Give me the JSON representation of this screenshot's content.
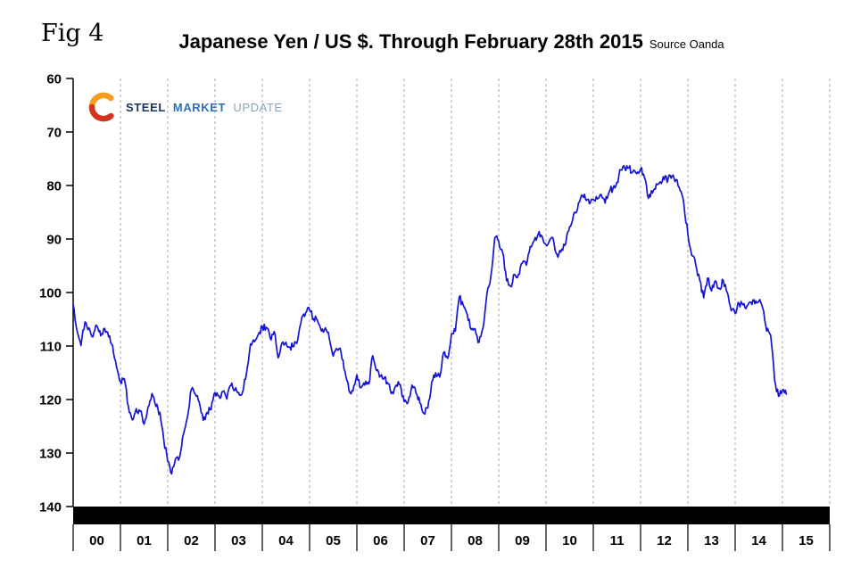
{
  "fig_label": "Fig 4",
  "title": "Japanese Yen / US $. Through February 28th 2015",
  "source": "Source Oanda",
  "logo": {
    "steel": "STEEL",
    "market": "MARKET",
    "update": "UPDATE",
    "arc_top_color": "#f59d20",
    "arc_bottom_color": "#d2351f"
  },
  "chart_data": {
    "type": "line",
    "title": "Japanese Yen / US $. Through February 28th 2015",
    "subtitle": "Source Oanda",
    "xlabel": "",
    "ylabel": "",
    "y_axis_inverted_display": true,
    "ylim_top_to_bottom": [
      60,
      140
    ],
    "y_ticks": [
      60,
      70,
      80,
      90,
      100,
      110,
      120,
      130,
      140
    ],
    "x_tick_labels": [
      "00",
      "01",
      "02",
      "03",
      "04",
      "05",
      "06",
      "07",
      "08",
      "09",
      "10",
      "11",
      "12",
      "13",
      "14",
      "15"
    ],
    "xlim_years": [
      2000,
      2016
    ],
    "grid": "vertical-dashed",
    "gridline_color": "#a8a8a8",
    "axis_color": "#000000",
    "bottom_bar_color": "#000000",
    "legend": "none",
    "series": [
      {
        "name": "Japanese Yen per US Dollar",
        "color": "#1414d2",
        "cadence": "monthly",
        "first_month": "2000-01",
        "last_month": "2015-02",
        "values": [
          102.2,
          107.2,
          109.9,
          105.5,
          106.6,
          108.3,
          106.2,
          108.1,
          106.7,
          108.3,
          109.9,
          113.9,
          116.7,
          116.1,
          121.2,
          123.8,
          121.7,
          122.2,
          124.6,
          121.4,
          118.9,
          121.3,
          122.4,
          127.6,
          131.6,
          133.9,
          131.0,
          130.8,
          126.4,
          123.3,
          118.1,
          119.0,
          120.5,
          123.9,
          122.4,
          121.9,
          118.7,
          119.3,
          118.5,
          119.9,
          117.4,
          118.3,
          118.7,
          118.6,
          115.1,
          109.6,
          109.2,
          107.8,
          106.4,
          106.5,
          108.5,
          107.3,
          112.2,
          109.4,
          109.3,
          110.2,
          110.1,
          108.8,
          104.7,
          103.8,
          103.3,
          104.9,
          105.2,
          107.2,
          106.6,
          108.6,
          111.9,
          110.6,
          111.2,
          114.8,
          118.4,
          118.4,
          115.4,
          117.8,
          117.3,
          117.1,
          111.8,
          114.6,
          115.6,
          115.9,
          117.1,
          118.6,
          117.3,
          117.2,
          120.4,
          120.5,
          117.3,
          118.8,
          120.7,
          122.6,
          121.6,
          116.7,
          115.0,
          115.8,
          111.2,
          112.3,
          107.7,
          107.2,
          100.8,
          102.4,
          104.1,
          106.9,
          106.8,
          109.3,
          106.7,
          100.2,
          96.9,
          89.8,
          90.4,
          92.5,
          97.8,
          98.9,
          96.6,
          96.6,
          94.5,
          94.9,
          91.4,
          90.3,
          89.1,
          89.5,
          91.1,
          90.1,
          90.6,
          93.4,
          91.9,
          90.9,
          87.7,
          85.4,
          84.4,
          81.8,
          82.5,
          83.4,
          82.6,
          82.5,
          81.7,
          83.3,
          81.2,
          80.5,
          79.4,
          77.1,
          76.8,
          76.7,
          77.5,
          77.8,
          76.9,
          78.5,
          82.4,
          81.4,
          79.7,
          79.3,
          78.9,
          78.7,
          78.2,
          78.9,
          80.9,
          83.6,
          89.1,
          93.1,
          94.8,
          97.7,
          101.0,
          97.3,
          99.7,
          97.8,
          99.2,
          97.8,
          100.0,
          103.4,
          103.9,
          102.1,
          102.3,
          102.5,
          101.8,
          102.1,
          101.7,
          102.9,
          107.2,
          108.0,
          116.4,
          119.4,
          118.3,
          119.0
        ]
      }
    ]
  }
}
